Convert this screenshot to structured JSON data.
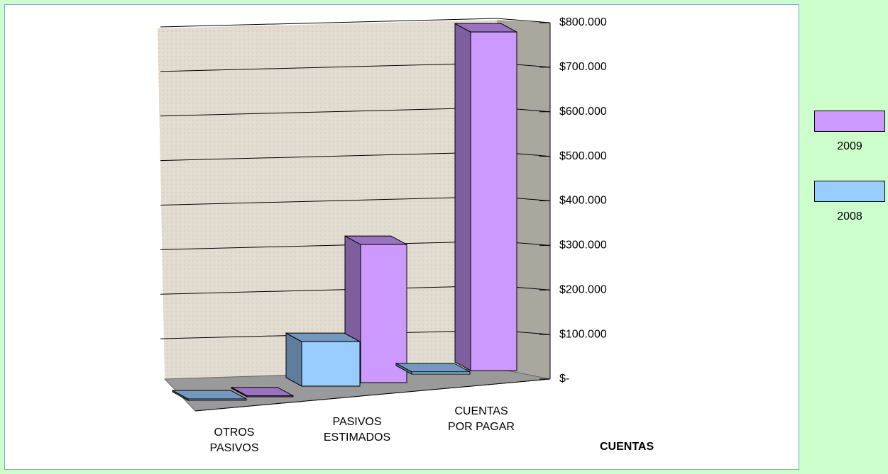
{
  "chart_data": {
    "type": "bar3d",
    "categories": [
      "OTROS PASIVOS",
      "PASIVOS ESTIMADOS",
      "CUENTAS POR PAGAR"
    ],
    "series": [
      {
        "name": "2008",
        "color": "#99ccff",
        "values": [
          3000,
          100000,
          5000
        ]
      },
      {
        "name": "2009",
        "color": "#cc99ff",
        "values": [
          2000,
          310000,
          760000
        ]
      }
    ],
    "x_label": "CUENTAS",
    "ylim": [
      0,
      800000
    ],
    "yticks": [
      {
        "value": 0,
        "label": "$-"
      },
      {
        "value": 100000,
        "label": "$100.000"
      },
      {
        "value": 200000,
        "label": "$200.000"
      },
      {
        "value": 300000,
        "label": "$300.000"
      },
      {
        "value": 400000,
        "label": "$400.000"
      },
      {
        "value": 500000,
        "label": "$500.000"
      },
      {
        "value": 600000,
        "label": "$600.000"
      },
      {
        "value": 700000,
        "label": "$700.000"
      },
      {
        "value": 800000,
        "label": "$800.000"
      }
    ],
    "grid": true,
    "legend": "right"
  }
}
